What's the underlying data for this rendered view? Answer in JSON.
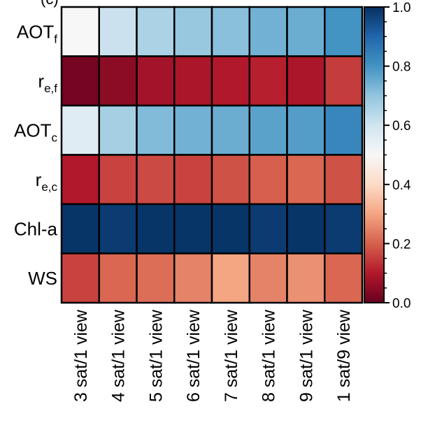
{
  "chart_data": {
    "type": "heatmap",
    "panel_label": "(c)",
    "rows": [
      {
        "main": "AOT",
        "sub": "f"
      },
      {
        "main": "r",
        "sub": "e,f"
      },
      {
        "main": "AOT",
        "sub": "c"
      },
      {
        "main": "r",
        "sub": "e,c"
      },
      {
        "main": "Chl-a",
        "sub": ""
      },
      {
        "main": "WS",
        "sub": ""
      }
    ],
    "columns": [
      "3 sat/1 view",
      "4 sat/1 view",
      "5 sat/1 view",
      "6 sat/1 view",
      "7 sat/1 view",
      "8 sat/1 view",
      "9 sat/1 view",
      "1 sat/9 view"
    ],
    "values": [
      [
        0.5,
        0.61,
        0.66,
        0.69,
        0.71,
        0.74,
        0.75,
        0.8
      ],
      [
        0.02,
        0.05,
        0.08,
        0.09,
        0.1,
        0.11,
        0.09,
        0.15
      ],
      [
        0.56,
        0.67,
        0.72,
        0.74,
        0.75,
        0.77,
        0.78,
        0.83
      ],
      [
        0.1,
        0.16,
        0.17,
        0.16,
        0.18,
        0.2,
        0.21,
        0.18
      ],
      [
        0.99,
        0.98,
        0.99,
        0.99,
        0.99,
        0.98,
        0.99,
        0.98
      ],
      [
        0.16,
        0.21,
        0.22,
        0.25,
        0.3,
        0.25,
        0.27,
        0.21
      ]
    ],
    "colorbar": {
      "range": [
        0.0,
        1.0
      ],
      "ticks": [
        "0.0",
        "0.2",
        "0.4",
        "0.6",
        "0.8",
        "1.0"
      ],
      "colormap": "RdBu",
      "stops": [
        "#67001f",
        "#b2182b",
        "#d6604d",
        "#f4a582",
        "#fddbc7",
        "#f7f7f7",
        "#d1e5f0",
        "#92c5de",
        "#4393c3",
        "#2166ac",
        "#053061"
      ]
    }
  }
}
